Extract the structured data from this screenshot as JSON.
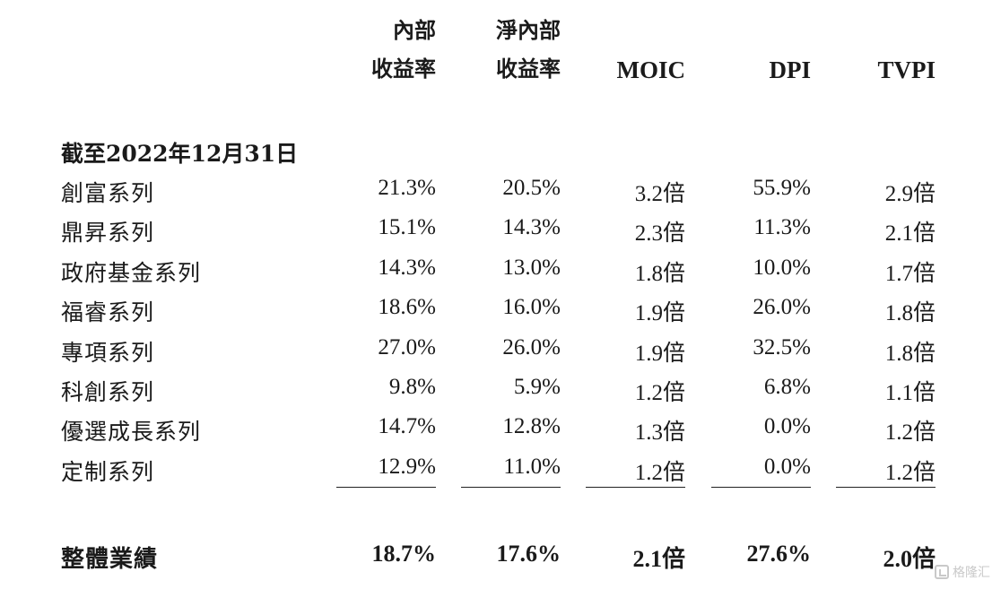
{
  "headers": {
    "irr": [
      "內部",
      "收益率"
    ],
    "net_irr": [
      "淨內部",
      "收益率"
    ],
    "moic": "MOIC",
    "dpi": "DPI",
    "tvpi": "TVPI"
  },
  "section_title": "截至2022年12月31日",
  "rows": [
    {
      "label": "創富系列",
      "irr": "21.3%",
      "net_irr": "20.5%",
      "moic": "3.2倍",
      "dpi": "55.9%",
      "tvpi": "2.9倍"
    },
    {
      "label": "鼎昇系列",
      "irr": "15.1%",
      "net_irr": "14.3%",
      "moic": "2.3倍",
      "dpi": "11.3%",
      "tvpi": "2.1倍"
    },
    {
      "label": "政府基金系列",
      "irr": "14.3%",
      "net_irr": "13.0%",
      "moic": "1.8倍",
      "dpi": "10.0%",
      "tvpi": "1.7倍"
    },
    {
      "label": "福睿系列",
      "irr": "18.6%",
      "net_irr": "16.0%",
      "moic": "1.9倍",
      "dpi": "26.0%",
      "tvpi": "1.8倍"
    },
    {
      "label": "專項系列",
      "irr": "27.0%",
      "net_irr": "26.0%",
      "moic": "1.9倍",
      "dpi": "32.5%",
      "tvpi": "1.8倍"
    },
    {
      "label": "科創系列",
      "irr": "9.8%",
      "net_irr": "5.9%",
      "moic": "1.2倍",
      "dpi": "6.8%",
      "tvpi": "1.1倍"
    },
    {
      "label": "優選成長系列",
      "irr": "14.7%",
      "net_irr": "12.8%",
      "moic": "1.3倍",
      "dpi": "0.0%",
      "tvpi": "1.2倍"
    },
    {
      "label": "定制系列",
      "irr": "12.9%",
      "net_irr": "11.0%",
      "moic": "1.2倍",
      "dpi": "0.0%",
      "tvpi": "1.2倍"
    }
  ],
  "total": {
    "label": "整體業績",
    "irr": "18.7%",
    "net_irr": "17.6%",
    "moic": "2.1倍",
    "dpi": "27.6%",
    "tvpi": "2.0倍"
  },
  "watermark": "格隆汇"
}
